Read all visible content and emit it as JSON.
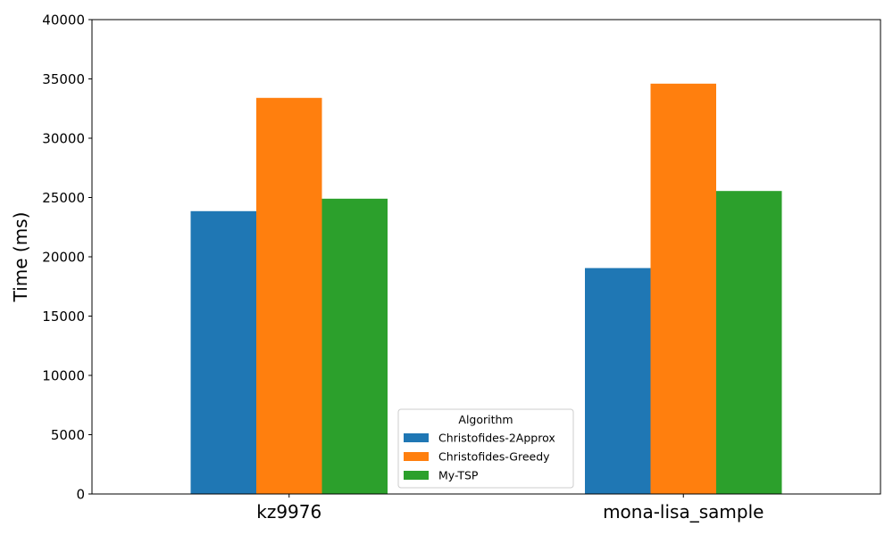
{
  "chart_data": {
    "type": "bar",
    "categories": [
      "kz9976",
      "mona-lisa_sample"
    ],
    "series": [
      {
        "name": "Christofides-2Approx",
        "color": "#1f77b4",
        "values": [
          23850,
          19050
        ]
      },
      {
        "name": "Christofides-Greedy",
        "color": "#ff7f0e",
        "values": [
          33400,
          34600
        ]
      },
      {
        "name": "My-TSP",
        "color": "#2ca02c",
        "values": [
          24900,
          25550
        ]
      }
    ],
    "xlabel": "",
    "ylabel": "Time (ms)",
    "ylim": [
      0,
      40000
    ],
    "yticks": [
      "0",
      "5000",
      "10000",
      "15000",
      "20000",
      "25000",
      "30000",
      "35000",
      "40000"
    ],
    "legend": {
      "title": "Algorithm",
      "placement": "lower-center"
    },
    "grid": false
  }
}
